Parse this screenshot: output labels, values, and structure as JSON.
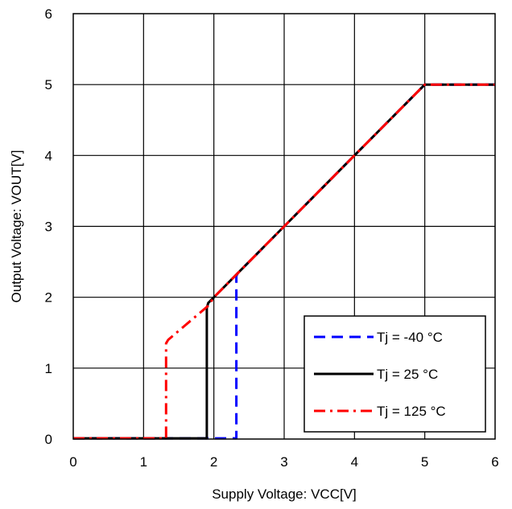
{
  "chart_data": {
    "type": "line",
    "xlabel": "Supply Voltage: VCC[V]",
    "ylabel": "Output Voltage: VOUT[V]",
    "xlim": [
      0,
      6
    ],
    "ylim": [
      0,
      6
    ],
    "xticks": [
      "0",
      "1",
      "2",
      "3",
      "4",
      "5",
      "6"
    ],
    "yticks": [
      "0",
      "1",
      "2",
      "3",
      "4",
      "5",
      "6"
    ],
    "grid": true,
    "legend_position": "bottom-right",
    "series": [
      {
        "name": "Tj = -40 °C",
        "color": "#0000ff",
        "dash": "dashed",
        "x": [
          0,
          2.32,
          2.32,
          2.34,
          3,
          4,
          4.95,
          5,
          6
        ],
        "y": [
          0.01,
          0.01,
          2.3,
          2.34,
          3,
          4,
          4.95,
          5,
          5
        ]
      },
      {
        "name": "Tj = 25 °C",
        "color": "#000000",
        "dash": "solid",
        "x": [
          0,
          1.9,
          1.9,
          1.92,
          2.0,
          3,
          4,
          4.95,
          5,
          6
        ],
        "y": [
          0.01,
          0.01,
          1.85,
          1.92,
          2.0,
          3,
          4,
          4.95,
          5,
          5
        ]
      },
      {
        "name": "Tj = 125 °C",
        "color": "#ff0000",
        "dash": "dashdot",
        "x": [
          0,
          1.32,
          1.32,
          1.35,
          1.92,
          2.0,
          3,
          4,
          4.95,
          5,
          6
        ],
        "y": [
          0.01,
          0.01,
          1.35,
          1.4,
          1.88,
          2.0,
          3,
          4,
          4.95,
          5,
          5
        ]
      }
    ]
  }
}
